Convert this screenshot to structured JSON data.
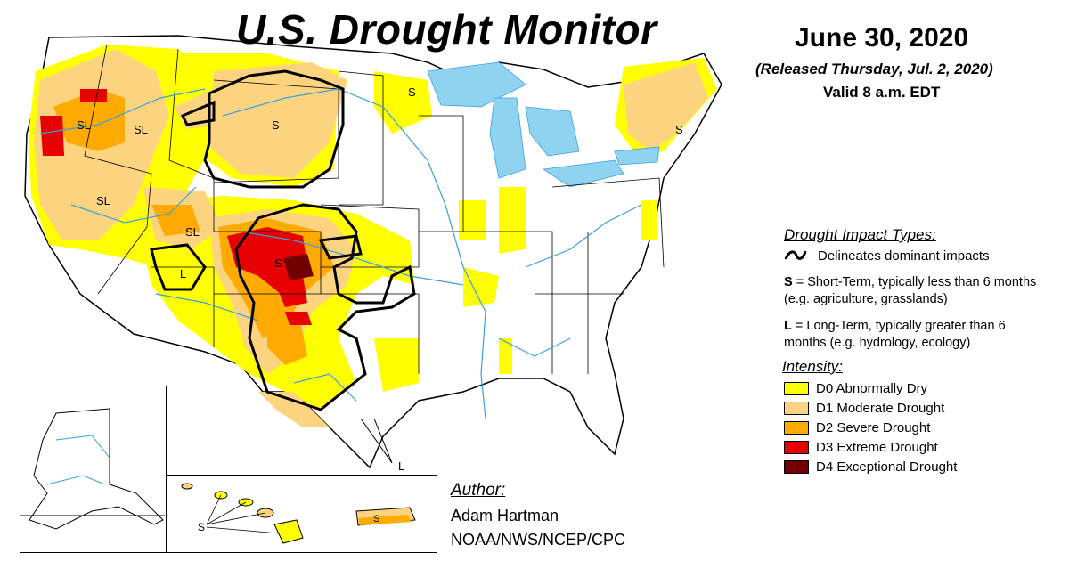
{
  "header": {
    "title": "U.S. Drought Monitor",
    "date": "June 30, 2020",
    "released": "(Released Thursday, Jul. 2, 2020)",
    "valid": "Valid 8 a.m. EDT"
  },
  "impact_types": {
    "heading": "Drought Impact Types:",
    "delineates": "Delineates dominant impacts",
    "short_term_letter": "S",
    "short_term_text": " = Short-Term, typically less than 6 months (e.g. agriculture, grasslands)",
    "long_term_letter": "L",
    "long_term_text": " = Long-Term, typically greater than 6 months (e.g. hydrology, ecology)"
  },
  "intensity": {
    "heading": "Intensity:",
    "levels": [
      {
        "label": "D0 Abnormally Dry",
        "color": "#ffff00"
      },
      {
        "label": "D1 Moderate Drought",
        "color": "#fcd37f"
      },
      {
        "label": "D2 Severe Drought",
        "color": "#ffaa00"
      },
      {
        "label": "D3 Extreme Drought",
        "color": "#e60000"
      },
      {
        "label": "D4 Exceptional Drought",
        "color": "#730000"
      }
    ]
  },
  "author": {
    "heading": "Author:",
    "name": "Adam Hartman",
    "org": "NOAA/NWS/NCEP/CPC"
  },
  "map_labels": {
    "sl_oregon": "SL",
    "sl_idaho": "SL",
    "s_montana": "S",
    "s_minnesota": "S",
    "s_newengland": "S",
    "sl_nevada": "SL",
    "sl_utah": "SL",
    "l_arizona": "L",
    "s_colorado": "S",
    "l_texas": "L",
    "s_hawaii": "S",
    "s_puertorico": "S"
  },
  "colors": {
    "water": "#8fd3f0",
    "river": "#3aa0e0"
  }
}
